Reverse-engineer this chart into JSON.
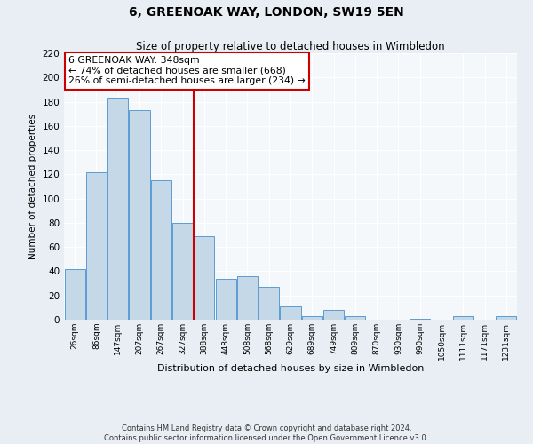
{
  "title": "6, GREENOAK WAY, LONDON, SW19 5EN",
  "subtitle": "Size of property relative to detached houses in Wimbledon",
  "xlabel": "Distribution of detached houses by size in Wimbledon",
  "ylabel": "Number of detached properties",
  "bin_labels": [
    "26sqm",
    "86sqm",
    "147sqm",
    "207sqm",
    "267sqm",
    "327sqm",
    "388sqm",
    "448sqm",
    "508sqm",
    "568sqm",
    "629sqm",
    "689sqm",
    "749sqm",
    "809sqm",
    "870sqm",
    "930sqm",
    "990sqm",
    "1050sqm",
    "1111sqm",
    "1171sqm",
    "1231sqm"
  ],
  "bar_values": [
    42,
    122,
    183,
    173,
    115,
    80,
    69,
    34,
    36,
    27,
    11,
    3,
    8,
    3,
    0,
    0,
    1,
    0,
    3,
    0,
    3
  ],
  "bar_color": "#c5d8e8",
  "bar_edge_color": "#5b9bd5",
  "ylim": [
    0,
    220
  ],
  "yticks": [
    0,
    20,
    40,
    60,
    80,
    100,
    120,
    140,
    160,
    180,
    200,
    220
  ],
  "property_line_x": 5.5,
  "property_line_color": "#cc0000",
  "annotation_box_text": "6 GREENOAK WAY: 348sqm\n← 74% of detached houses are smaller (668)\n26% of semi-detached houses are larger (234) →",
  "annotation_box_color": "#cc0000",
  "footer_line1": "Contains HM Land Registry data © Crown copyright and database right 2024.",
  "footer_line2": "Contains public sector information licensed under the Open Government Licence v3.0.",
  "bg_color": "#e8eef4",
  "plot_bg_color": "#f5f8fb",
  "grid_color": "#ffffff"
}
